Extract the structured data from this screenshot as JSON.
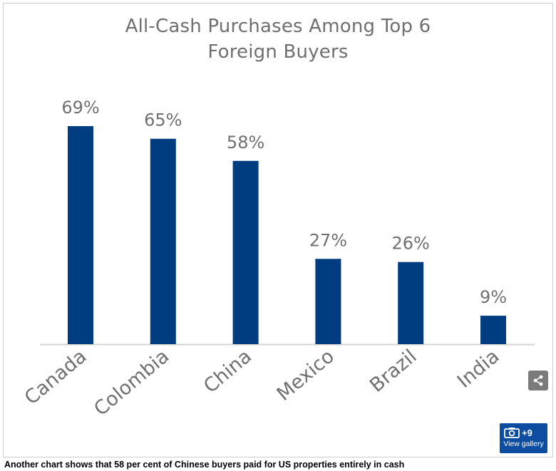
{
  "chart_data": {
    "type": "bar",
    "title": "All-Cash Purchases Among Top 6 Foreign Buyers",
    "title_lines": [
      "All-Cash Purchases Among Top 6",
      "Foreign Buyers"
    ],
    "categories": [
      "Canada",
      "Colombia",
      "China",
      "Mexico",
      "Brazil",
      "India"
    ],
    "values": [
      69,
      65,
      58,
      27,
      26,
      9
    ],
    "value_labels": [
      "69%",
      "65%",
      "58%",
      "27%",
      "26%",
      "9%"
    ],
    "unit": "%",
    "xlabel": "",
    "ylabel": "",
    "ylim": [
      0,
      69
    ],
    "grid": false,
    "colors": {
      "bar": "#003d80",
      "title": "#6f6f6f",
      "labels": "#707070",
      "baseline": "#d5d5d5"
    }
  },
  "gallery": {
    "count": "+9",
    "label": "View gallery",
    "icon": "camera-icon",
    "bg": "#0c4da2"
  },
  "share": {
    "icon": "share-icon"
  },
  "caption": "Another chart shows that 58 per cent of Chinese buyers paid for US properties entirely in cash"
}
